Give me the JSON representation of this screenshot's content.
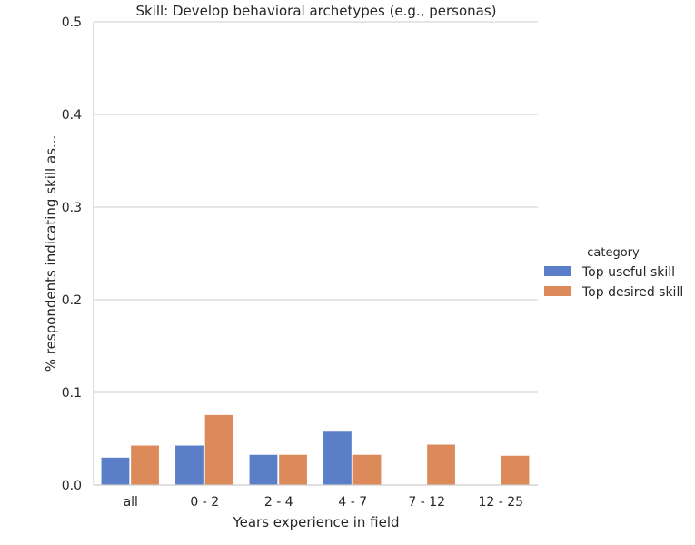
{
  "chart_data": {
    "type": "bar",
    "title": "Skill: Develop behavioral archetypes (e.g., personas)",
    "xlabel": "Years experience in field",
    "ylabel": "% respondents indicating skill as...",
    "categories": [
      "all",
      "0 - 2",
      "2 - 4",
      "4 - 7",
      "7 - 12",
      "12 - 25"
    ],
    "ylim": [
      0,
      0.5
    ],
    "yticks": [
      "0.0",
      "0.1",
      "0.2",
      "0.3",
      "0.4",
      "0.5"
    ],
    "grid": "horizontal",
    "legend": {
      "title": "category",
      "placement": "right"
    },
    "series": [
      {
        "name": "Top useful skill",
        "color": "#5a7fc8",
        "values": [
          0.03,
          0.043,
          0.033,
          0.058,
          null,
          null
        ]
      },
      {
        "name": "Top desired skill",
        "color": "#dd8a5b",
        "values": [
          0.043,
          0.076,
          0.033,
          0.033,
          0.044,
          0.032
        ]
      }
    ]
  }
}
